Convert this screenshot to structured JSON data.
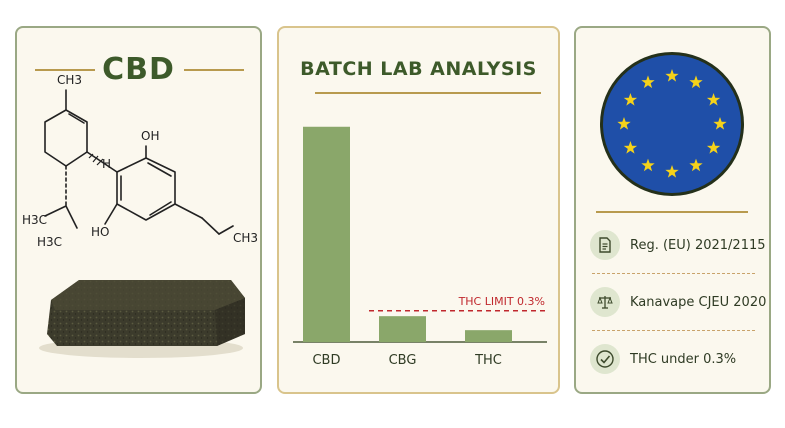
{
  "left_panel": {
    "title": "CBD",
    "molecule_labels": {
      "ch3_top": "CH3",
      "h": "H",
      "oh_top": "OH",
      "h3c_left": "H3C",
      "h3c_bottom": "H3C",
      "ho": "HO",
      "ch3_right": "CH3"
    },
    "resin_color": "#3c3b2c"
  },
  "chart_panel": {
    "title": "BATCH LAB ANALYSIS"
  },
  "chart_data": {
    "type": "bar",
    "title": "BATCH LAB ANALYSIS",
    "categories": [
      "CBD",
      "CBG",
      "THC"
    ],
    "values": [
      100,
      12,
      5.5
    ],
    "ylim": [
      0,
      105
    ],
    "xlabel": "",
    "ylabel": "",
    "grid": false,
    "bar_color": "#8aa76a",
    "annotations": [
      {
        "label": "THC LIMIT 0.3%",
        "y": 14.5,
        "color": "#c0282d",
        "style": "dashed"
      }
    ]
  },
  "right_panel": {
    "flag": {
      "background": "#1f4fa8",
      "star_color": "#f5d21a",
      "ring": "#24301a",
      "stars": 12
    },
    "regulations": [
      {
        "icon": "document-icon",
        "text": "Reg. (EU) 2021/2115"
      },
      {
        "icon": "scales-icon",
        "text": "Kanavape CJEU 2020"
      },
      {
        "icon": "check-circle-icon",
        "text": "THC under 0.3%"
      }
    ]
  },
  "colors": {
    "green_dark": "#3d5a2a",
    "gold": "#b89a4e",
    "panel_bg": "#fbf8ee",
    "threshold_red": "#c0282d"
  }
}
